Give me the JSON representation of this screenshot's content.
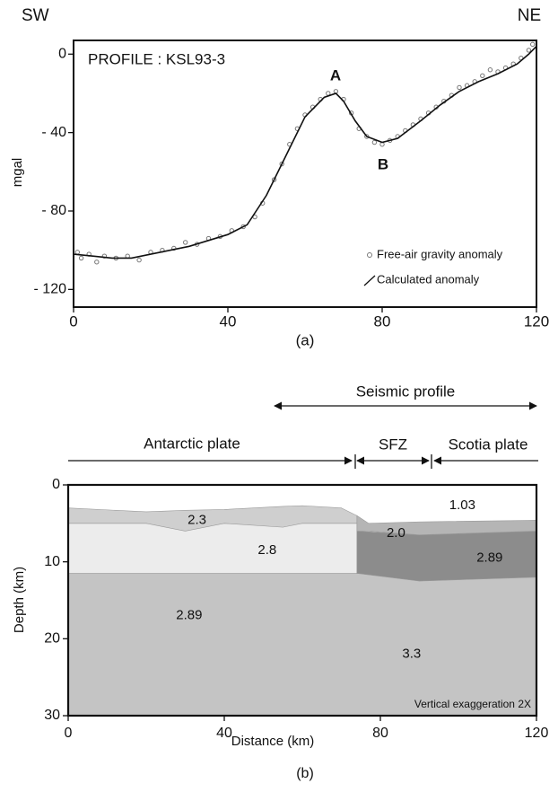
{
  "chart_data": [
    {
      "type": "line",
      "labels": {
        "left": "SW",
        "right": "NE",
        "title": "PROFILE : KSL93-3",
        "peak": "A",
        "trough": "B",
        "panel": "(a)"
      },
      "ylabel": "mgal",
      "xlim": [
        0,
        120
      ],
      "ylim": [
        -129,
        7
      ],
      "xticks": [
        0,
        40,
        80,
        120
      ],
      "yticks": [
        0,
        {
          "value": -40,
          "label": "- 40"
        },
        {
          "value": -80,
          "label": "- 80"
        },
        {
          "value": -120,
          "label": "- 120"
        }
      ],
      "series": [
        {
          "name": "Free-air gravity anomaly",
          "color": "#777777",
          "marker": "circle",
          "x": [
            1,
            2,
            4,
            6,
            8,
            11,
            14,
            17,
            20,
            23,
            26,
            29,
            32,
            35,
            38,
            41,
            44,
            47,
            49,
            52,
            54,
            56,
            58,
            60,
            62,
            64,
            66,
            68,
            70,
            72,
            74,
            76,
            78,
            80,
            82,
            84,
            86,
            88,
            90,
            92,
            94,
            96,
            98,
            100,
            102,
            104,
            106,
            108,
            110,
            112,
            114,
            116,
            118,
            119
          ],
          "values": [
            -101,
            -104,
            -102,
            -106,
            -103,
            -104,
            -103,
            -105,
            -101,
            -100,
            -99,
            -96,
            -97,
            -94,
            -93,
            -90,
            -88,
            -83,
            -76,
            -64,
            -56,
            -46,
            -38,
            -31,
            -27,
            -23,
            -20,
            -19,
            -23,
            -30,
            -38,
            -42,
            -45,
            -46,
            -44,
            -42,
            -39,
            -36,
            -33,
            -30,
            -27,
            -24,
            -21,
            -17,
            -16,
            -14,
            -11,
            -8,
            -9,
            -7,
            -5,
            -2,
            2,
            5
          ]
        },
        {
          "name": "Calculated anomaly",
          "color": "#111111",
          "marker": "line",
          "x": [
            0,
            5,
            10,
            15,
            20,
            30,
            40,
            45,
            50,
            55,
            60,
            65,
            68,
            70,
            73,
            76,
            80,
            84,
            90,
            95,
            100,
            105,
            110,
            115,
            118,
            120
          ],
          "values": [
            -102,
            -103,
            -104,
            -104,
            -102,
            -98,
            -92,
            -87,
            -72,
            -52,
            -32,
            -22,
            -20,
            -24,
            -34,
            -42,
            -45,
            -43,
            -34,
            -26,
            -19,
            -14,
            -10,
            -5,
            0,
            4
          ]
        }
      ]
    },
    {
      "type": "section",
      "headers": {
        "seismic": "Seismic profile",
        "antarctic": "Antarctic plate",
        "sfz": "SFZ",
        "scotia": "Scotia plate"
      },
      "xlabel": "Distance (km)",
      "ylabel": "Depth (km)",
      "note": "Vertical exaggeration  2X",
      "panel": "(b)",
      "xlim": [
        0,
        120
      ],
      "ylim": [
        30,
        0
      ],
      "xticks": [
        0,
        40,
        80,
        120
      ],
      "yticks": [
        0,
        10,
        20,
        30
      ],
      "layers": [
        {
          "name": "2.89",
          "color": "#c4c4c4",
          "x": [
            0,
            120
          ],
          "top": [
            11.5,
            11.5
          ],
          "bottom": [
            30,
            30
          ]
        },
        {
          "name": "2.8",
          "color": "#ececec",
          "x": [
            0,
            74
          ],
          "top": [
            5,
            5
          ],
          "bottom": [
            11.5,
            11.5
          ]
        },
        {
          "name": "2.3",
          "color": "#cfcfcf",
          "x": [
            0,
            20,
            30,
            40,
            55,
            60,
            70,
            74
          ],
          "top": [
            3,
            3.5,
            3.3,
            3.2,
            2.8,
            2.7,
            3,
            4
          ],
          "bottom": [
            5,
            5,
            6,
            5,
            5.5,
            5,
            5,
            5
          ]
        },
        {
          "name": "2.89",
          "color": "#8c8c8c",
          "x": [
            74,
            90,
            120
          ],
          "top": [
            6,
            6.5,
            6
          ],
          "bottom": [
            11.5,
            12.5,
            12
          ]
        },
        {
          "name": "2.0",
          "color": "#b5b5b5",
          "x": [
            74,
            77,
            90,
            120
          ],
          "top": [
            4,
            5,
            4.8,
            4.6
          ],
          "bottom": [
            6,
            6,
            6.5,
            6
          ]
        }
      ],
      "annotations": [
        {
          "text": "1.03",
          "x": 101,
          "y": 2.7
        },
        {
          "text": "2.3",
          "x": 33,
          "y": 4.6
        },
        {
          "text": "2.0",
          "x": 84,
          "y": 6.3
        },
        {
          "text": "2.8",
          "x": 51,
          "y": 8.5
        },
        {
          "text": "2.89",
          "x": 108,
          "y": 9.5
        },
        {
          "text": "2.89",
          "x": 31,
          "y": 17
        },
        {
          "text": "3.3",
          "x": 88,
          "y": 22
        }
      ]
    }
  ]
}
